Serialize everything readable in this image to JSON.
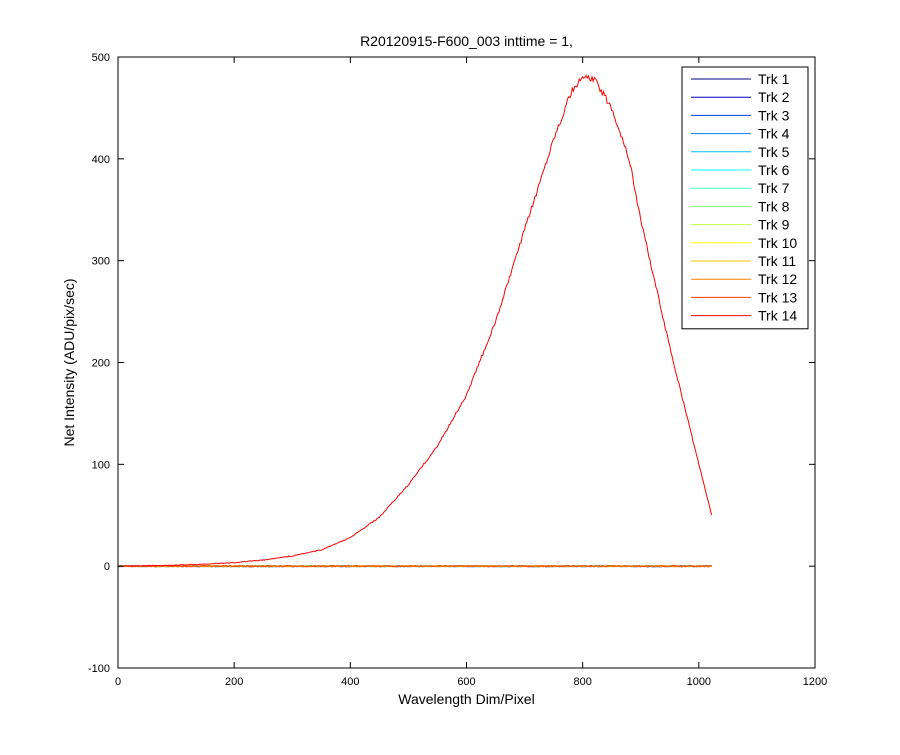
{
  "chart_data": {
    "type": "line",
    "title": "R20120915-F600_003 inttime = 1,",
    "xlabel": "Wavelength Dim/Pixel",
    "ylabel": "Net Intensity (ADU/pix/sec)",
    "xlim": [
      0,
      1200
    ],
    "ylim": [
      -100,
      500
    ],
    "xticks": [
      "0",
      "200",
      "400",
      "600",
      "800",
      "1000",
      "1200"
    ],
    "yticks": [
      "-100",
      "0",
      "100",
      "200",
      "300",
      "400",
      "500"
    ],
    "grid": false,
    "legend_position": "top-right",
    "series": [
      {
        "name": "Trk 1",
        "color": "#00008f",
        "profile": "flat"
      },
      {
        "name": "Trk 2",
        "color": "#0000c0",
        "profile": "flat"
      },
      {
        "name": "Trk 3",
        "color": "#0040ff",
        "profile": "flat"
      },
      {
        "name": "Trk 4",
        "color": "#0080ff",
        "profile": "flat"
      },
      {
        "name": "Trk 5",
        "color": "#00bfff",
        "profile": "flat"
      },
      {
        "name": "Trk 6",
        "color": "#00ffff",
        "profile": "flat"
      },
      {
        "name": "Trk 7",
        "color": "#40ffbf",
        "profile": "flat"
      },
      {
        "name": "Trk 8",
        "color": "#80ff80",
        "profile": "flat"
      },
      {
        "name": "Trk 9",
        "color": "#bfff40",
        "profile": "flat"
      },
      {
        "name": "Trk 10",
        "color": "#ffff00",
        "profile": "flat"
      },
      {
        "name": "Trk 11",
        "color": "#ffbf00",
        "profile": "flat"
      },
      {
        "name": "Trk 12",
        "color": "#ff8000",
        "profile": "flat"
      },
      {
        "name": "Trk 13",
        "color": "#ff4000",
        "profile": "flat"
      },
      {
        "name": "Trk 14",
        "color": "#ff0000",
        "profile": "curve",
        "x": [
          0,
          50,
          100,
          150,
          200,
          250,
          300,
          350,
          400,
          450,
          500,
          550,
          600,
          650,
          700,
          750,
          780,
          800,
          820,
          850,
          880,
          900,
          950,
          1000,
          1023
        ],
        "y": [
          0,
          0.5,
          1,
          2,
          3.5,
          6,
          10,
          16,
          28,
          48,
          80,
          118,
          168,
          240,
          330,
          420,
          465,
          480,
          478,
          450,
          400,
          340,
          215,
          100,
          48
        ]
      }
    ]
  }
}
